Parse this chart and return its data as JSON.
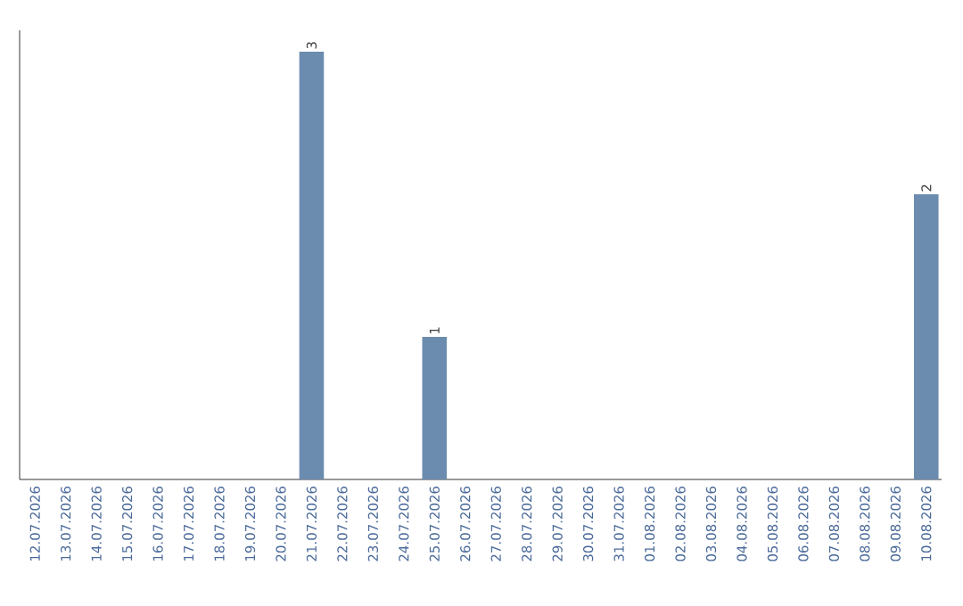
{
  "chart_data": {
    "type": "bar",
    "categories": [
      "12.07.2026",
      "13.07.2026",
      "14.07.2026",
      "15.07.2026",
      "16.07.2026",
      "17.07.2026",
      "18.07.2026",
      "19.07.2026",
      "20.07.2026",
      "21.07.2026",
      "22.07.2026",
      "23.07.2026",
      "24.07.2026",
      "25.07.2026",
      "26.07.2026",
      "27.07.2026",
      "28.07.2026",
      "29.07.2026",
      "30.07.2026",
      "31.07.2026",
      "01.08.2026",
      "02.08.2026",
      "03.08.2026",
      "04.08.2026",
      "05.08.2026",
      "06.08.2026",
      "07.08.2026",
      "08.08.2026",
      "09.08.2026",
      "10.08.2026"
    ],
    "values": [
      0,
      0,
      0,
      0,
      0,
      0,
      0,
      0,
      0,
      3,
      0,
      0,
      0,
      1,
      0,
      0,
      0,
      0,
      0,
      0,
      0,
      0,
      0,
      0,
      0,
      0,
      0,
      0,
      0,
      2
    ],
    "value_labels": [
      null,
      null,
      null,
      null,
      null,
      null,
      null,
      null,
      null,
      "3",
      null,
      null,
      null,
      "1",
      null,
      null,
      null,
      null,
      null,
      null,
      null,
      null,
      null,
      null,
      null,
      null,
      null,
      null,
      null,
      "2"
    ],
    "color": "#6b8cae",
    "tick_labels": "x"
  }
}
